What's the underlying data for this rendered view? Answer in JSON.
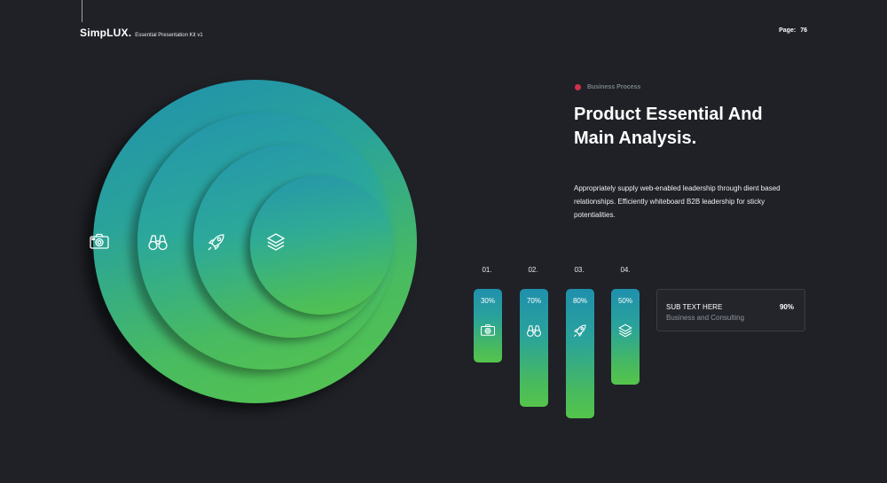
{
  "header": {
    "brand": "SimpLUX.",
    "kit": "Essential Presentation Kit v1",
    "page_label": "Page:",
    "page_number": "76"
  },
  "section": {
    "tag": "Business Process",
    "title_line1": "Product Essential And",
    "title_line2": "Main Analysis.",
    "description": "Appropriately supply web-enabled leadership through dient based relationships. Efficiently whiteboard B2B leadership for sticky potentialities."
  },
  "colors": {
    "accent_dot": "#d1304a",
    "gradient_top": "#1f90ad",
    "gradient_bottom": "#55c44b",
    "background": "#1f2127"
  },
  "circle_icons": [
    "camera-icon",
    "binoculars-icon",
    "rocket-icon",
    "layers-icon"
  ],
  "bars": [
    {
      "number": "01.",
      "percent": "30%",
      "value": 30,
      "icon": "camera-icon"
    },
    {
      "number": "02.",
      "percent": "70%",
      "value": 70,
      "icon": "binoculars-icon"
    },
    {
      "number": "03.",
      "percent": "80%",
      "value": 80,
      "icon": "rocket-icon"
    },
    {
      "number": "04.",
      "percent": "50%",
      "value": 50,
      "icon": "layers-icon"
    }
  ],
  "card": {
    "heading": "SUB TEXT HERE",
    "subtext": "Business and Consulting",
    "value": "90%"
  }
}
